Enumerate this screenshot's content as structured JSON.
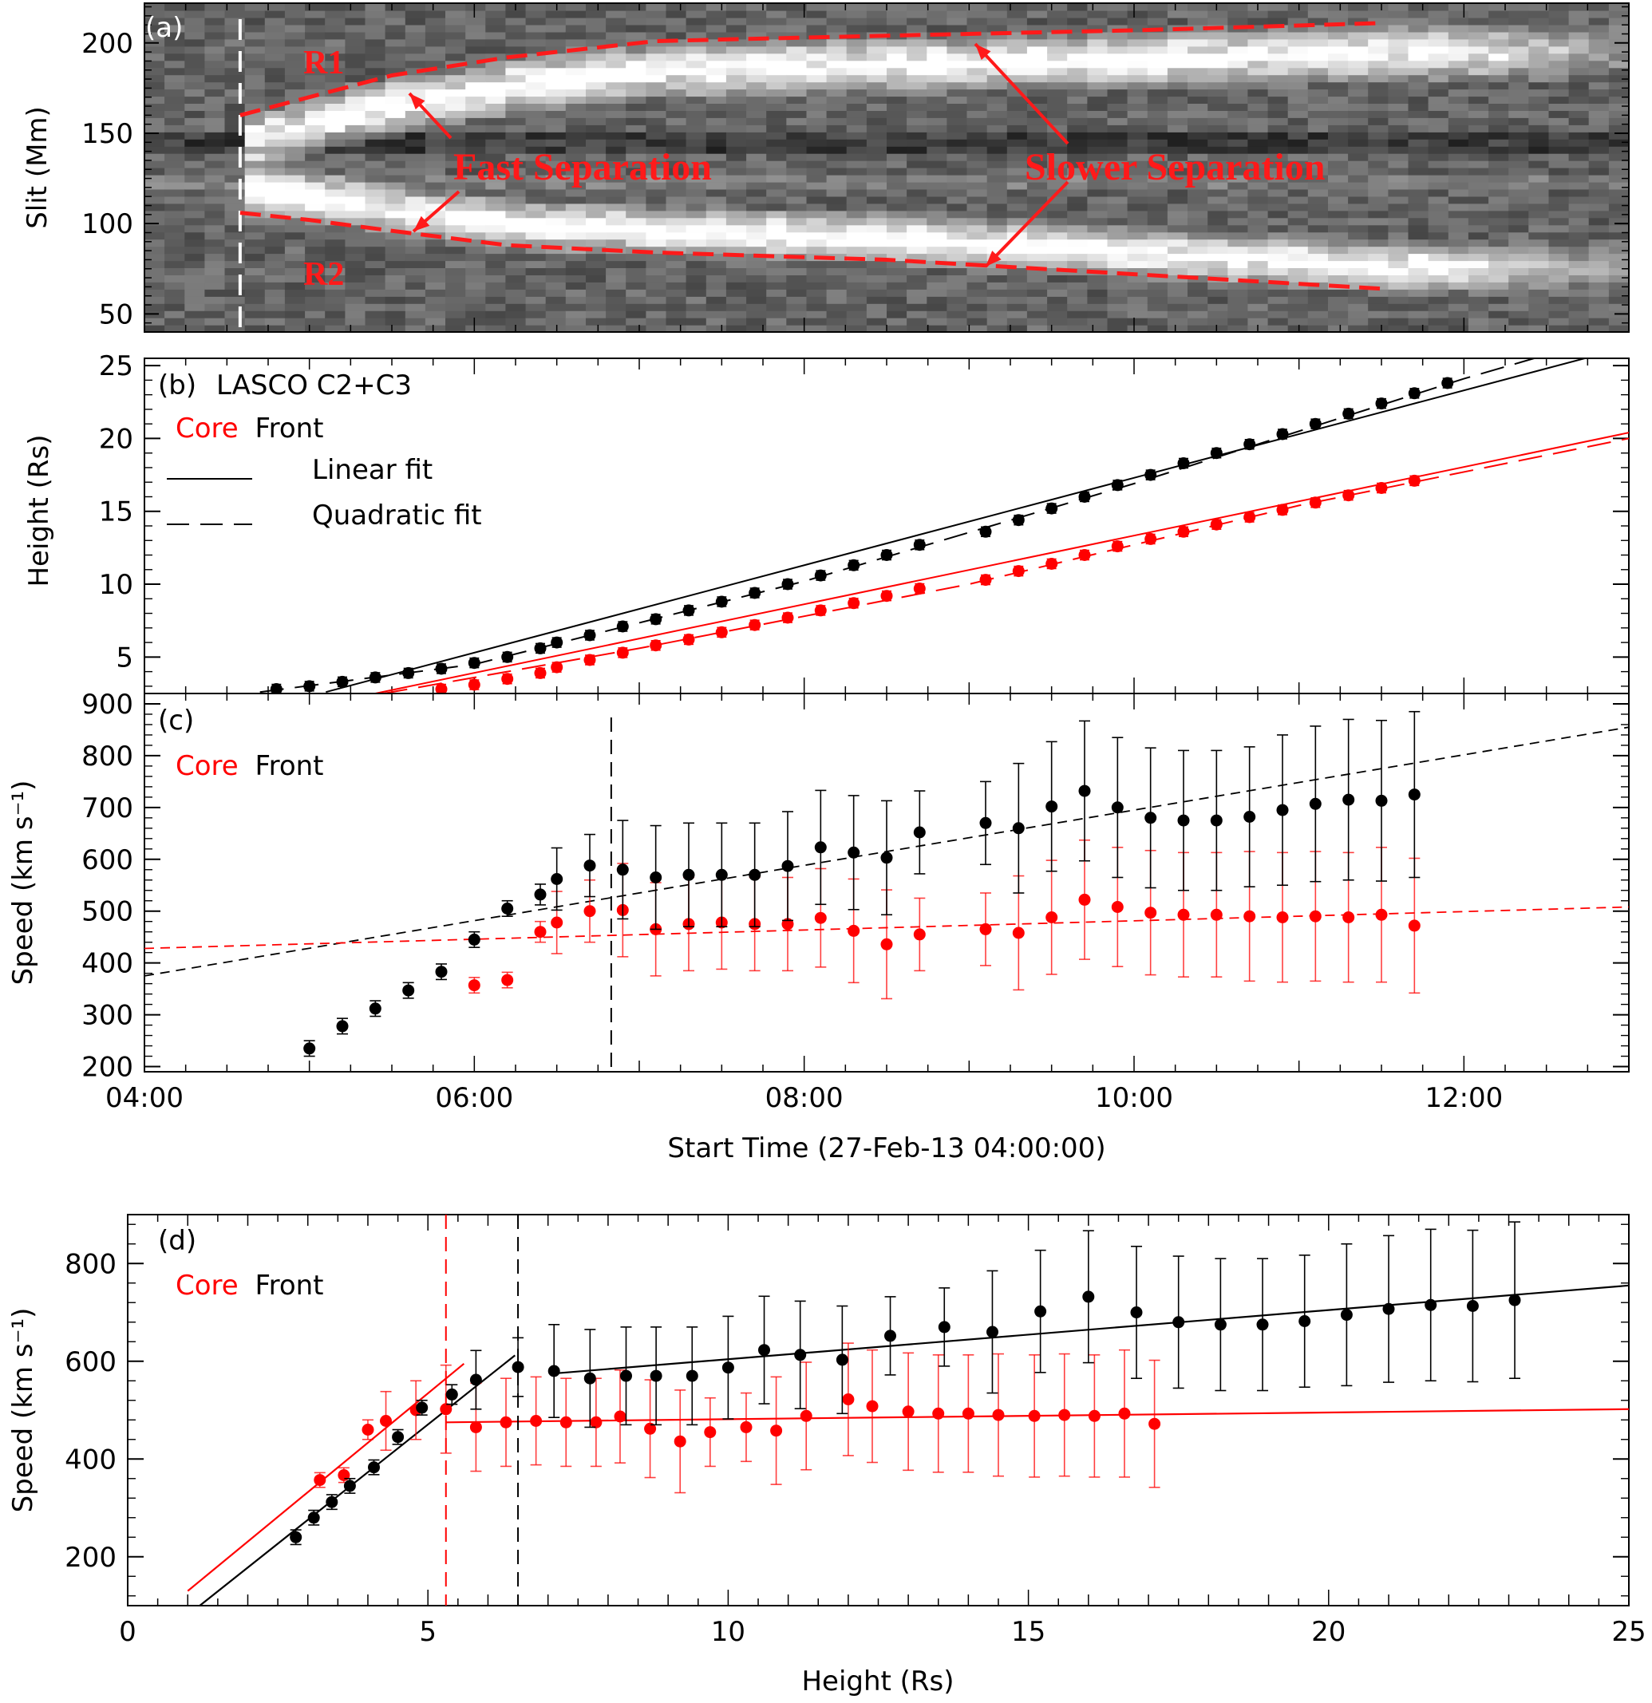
{
  "colors": {
    "red": "#ff0000",
    "black": "#000000",
    "annotation_red": "#ff1a1a"
  },
  "chart_data": [
    {
      "id": "a",
      "type": "heatmap",
      "panel_label": "(a)",
      "ylabel": "Slit (Mm)",
      "ylim": [
        40,
        222
      ],
      "yticks": [
        50,
        100,
        150,
        200
      ],
      "xlim_hours": [
        4.0,
        13.0
      ],
      "start_line_hours": 4.58,
      "ribbons": [
        {
          "name": "R1",
          "points": [
            [
              4.58,
              160
            ],
            [
              5.0,
              170
            ],
            [
              5.5,
              182
            ],
            [
              6.2,
              192
            ],
            [
              7.1,
              201
            ],
            [
              8.5,
              204
            ],
            [
              10.0,
              207
            ],
            [
              11.5,
              211
            ]
          ]
        },
        {
          "name": "R2",
          "points": [
            [
              4.58,
              106
            ],
            [
              5.0,
              102
            ],
            [
              5.5,
              96
            ],
            [
              6.2,
              88
            ],
            [
              7.1,
              84
            ],
            [
              8.5,
              80
            ],
            [
              10.0,
              72
            ],
            [
              11.5,
              64
            ]
          ]
        }
      ],
      "ribbon_labels": [
        "R1",
        "R2"
      ],
      "annotations": [
        "Fast Separation",
        "Slower Separation"
      ]
    },
    {
      "id": "b",
      "type": "scatter",
      "panel_label": "(b)",
      "legend_title": "LASCO C2+C3",
      "legend_core": "Core",
      "legend_front": "Front",
      "legend_linear": "Linear fit",
      "legend_quadratic": "Quadratic fit",
      "ylabel": "Height (Rs)",
      "ylim": [
        2.5,
        25.5
      ],
      "yticks": [
        5,
        10,
        15,
        20,
        25
      ],
      "xlim_hours": [
        4.0,
        13.0
      ],
      "series": [
        {
          "name": "Front",
          "color": "#000000",
          "x": [
            4.8,
            5.0,
            5.2,
            5.4,
            5.6,
            5.8,
            6.0,
            6.2,
            6.4,
            6.5,
            6.7,
            6.9,
            7.1,
            7.3,
            7.5,
            7.7,
            7.9,
            8.1,
            8.3,
            8.5,
            8.7,
            9.1,
            9.3,
            9.5,
            9.7,
            9.9,
            10.1,
            10.3,
            10.5,
            10.7,
            10.9,
            11.1,
            11.3,
            11.5,
            11.7,
            11.9
          ],
          "y": [
            2.8,
            3.0,
            3.3,
            3.6,
            3.9,
            4.2,
            4.6,
            5.0,
            5.6,
            6.0,
            6.5,
            7.1,
            7.6,
            8.2,
            8.8,
            9.4,
            10.0,
            10.6,
            11.3,
            12.0,
            12.7,
            13.6,
            14.4,
            15.2,
            16.0,
            16.8,
            17.5,
            18.3,
            19.0,
            19.6,
            20.3,
            21.0,
            21.7,
            22.4,
            23.1,
            23.8
          ]
        },
        {
          "name": "Core",
          "color": "#ff0000",
          "x": [
            5.8,
            6.0,
            6.2,
            6.4,
            6.5,
            6.7,
            6.9,
            7.1,
            7.3,
            7.5,
            7.7,
            7.9,
            8.1,
            8.3,
            8.5,
            8.7,
            9.1,
            9.3,
            9.5,
            9.7,
            9.9,
            10.1,
            10.3,
            10.5,
            10.7,
            10.9,
            11.1,
            11.3,
            11.5,
            11.7
          ],
          "y": [
            2.8,
            3.1,
            3.5,
            3.9,
            4.3,
            4.8,
            5.3,
            5.8,
            6.2,
            6.7,
            7.2,
            7.7,
            8.2,
            8.7,
            9.2,
            9.7,
            10.3,
            10.9,
            11.4,
            12.0,
            12.6,
            13.1,
            13.6,
            14.1,
            14.6,
            15.1,
            15.6,
            16.1,
            16.6,
            17.1
          ]
        }
      ],
      "fits": [
        {
          "kind": "linear",
          "color": "#000000",
          "from": [
            5.1,
            2.6
          ],
          "to": [
            13.0,
            26.3
          ]
        },
        {
          "kind": "quadratic",
          "color": "#000000",
          "points": [
            [
              4.7,
              2.6
            ],
            [
              6.0,
              4.5
            ],
            [
              8.0,
              10.2
            ],
            [
              10.0,
              16.9
            ],
            [
              12.0,
              24.1
            ],
            [
              12.7,
              26.4
            ]
          ]
        },
        {
          "kind": "linear",
          "color": "#ff0000",
          "from": [
            5.4,
            2.5
          ],
          "to": [
            13.0,
            20.4
          ]
        },
        {
          "kind": "quadratic",
          "color": "#ff0000",
          "points": [
            [
              5.45,
              2.5
            ],
            [
              7.0,
              5.6
            ],
            [
              9.0,
              10.0
            ],
            [
              11.0,
              15.4
            ],
            [
              13.0,
              20.0
            ]
          ]
        }
      ]
    },
    {
      "id": "c",
      "type": "scatter",
      "panel_label": "(c)",
      "legend_core": "Core",
      "legend_front": "Front",
      "ylabel": "Speed (km s⁻¹)",
      "ylim": [
        190,
        920
      ],
      "yticks": [
        200,
        300,
        400,
        500,
        600,
        700,
        800,
        900
      ],
      "xlim_hours": [
        4.0,
        13.0
      ],
      "xtick_labels": [
        "04:00",
        "06:00",
        "08:00",
        "10:00",
        "12:00"
      ],
      "xtick_hours": [
        4,
        6,
        8,
        10,
        12
      ],
      "xlabel": "Start Time (27-Feb-13 04:00:00)",
      "vline_hours": 6.83,
      "series": [
        {
          "name": "Front",
          "color": "#000000",
          "x": [
            5.0,
            5.2,
            5.4,
            5.6,
            5.8,
            6.0,
            6.2,
            6.4,
            6.5,
            6.7,
            6.9,
            7.1,
            7.3,
            7.5,
            7.7,
            7.9,
            8.1,
            8.3,
            8.5,
            8.7,
            9.1,
            9.3,
            9.5,
            9.7,
            9.9,
            10.1,
            10.3,
            10.5,
            10.7,
            10.9,
            11.1,
            11.3,
            11.5,
            11.7
          ],
          "y": [
            235,
            278,
            312,
            347,
            383,
            445,
            505,
            532,
            562,
            588,
            580,
            565,
            570,
            570,
            570,
            587,
            623,
            613,
            603,
            652,
            670,
            660,
            702,
            732,
            700,
            680,
            675,
            675,
            682,
            695,
            707,
            715,
            713,
            725
          ],
          "err": [
            15,
            15,
            15,
            15,
            15,
            15,
            15,
            20,
            60,
            60,
            95,
            100,
            100,
            100,
            100,
            105,
            110,
            110,
            110,
            80,
            80,
            125,
            125,
            135,
            135,
            135,
            135,
            135,
            135,
            145,
            150,
            155,
            155,
            160
          ]
        },
        {
          "name": "Core",
          "color": "#ff0000",
          "x": [
            6.0,
            6.2,
            6.4,
            6.5,
            6.7,
            6.9,
            7.1,
            7.3,
            7.5,
            7.7,
            7.9,
            8.1,
            8.3,
            8.5,
            8.7,
            9.1,
            9.3,
            9.5,
            9.7,
            9.9,
            10.1,
            10.3,
            10.5,
            10.7,
            10.9,
            11.1,
            11.3,
            11.5,
            11.7
          ],
          "y": [
            357,
            367,
            460,
            478,
            500,
            502,
            465,
            475,
            478,
            475,
            475,
            487,
            462,
            436,
            455,
            465,
            458,
            488,
            522,
            508,
            497,
            493,
            493,
            490,
            488,
            490,
            488,
            493,
            472
          ],
          "err": [
            15,
            15,
            20,
            60,
            60,
            90,
            90,
            90,
            90,
            90,
            90,
            95,
            100,
            105,
            70,
            70,
            110,
            110,
            115,
            115,
            120,
            120,
            120,
            125,
            125,
            125,
            125,
            130,
            130
          ]
        }
      ],
      "fits": [
        {
          "color": "#000000",
          "from": [
            4.0,
            375
          ],
          "to": [
            13.0,
            855
          ]
        },
        {
          "color": "#ff0000",
          "from": [
            4.0,
            428
          ],
          "to": [
            13.0,
            508
          ]
        }
      ]
    },
    {
      "id": "d",
      "type": "scatter",
      "panel_label": "(d)",
      "legend_core": "Core",
      "legend_front": "Front",
      "xlabel": "Height (Rs)",
      "ylabel": "Speed (km s⁻¹)",
      "xlim": [
        0,
        25
      ],
      "xticks": [
        0,
        5,
        10,
        15,
        20,
        25
      ],
      "ylim": [
        100,
        900
      ],
      "yticks": [
        200,
        400,
        600,
        800
      ],
      "vlines": [
        {
          "x": 5.3,
          "color": "#ff0000"
        },
        {
          "x": 6.5,
          "color": "#000000"
        }
      ],
      "series": [
        {
          "name": "Front",
          "color": "#000000",
          "x": [
            2.8,
            3.1,
            3.4,
            3.7,
            4.1,
            4.5,
            4.9,
            5.4,
            5.8,
            6.5,
            7.1,
            7.7,
            8.3,
            8.8,
            9.4,
            10.0,
            10.6,
            11.2,
            11.9,
            12.7,
            13.6,
            14.4,
            15.2,
            16.0,
            16.8,
            17.5,
            18.2,
            18.9,
            19.6,
            20.3,
            21.0,
            21.7,
            22.4,
            23.1
          ],
          "y": [
            240,
            280,
            312,
            345,
            383,
            445,
            505,
            532,
            562,
            588,
            580,
            565,
            570,
            570,
            570,
            587,
            623,
            613,
            603,
            652,
            670,
            660,
            702,
            732,
            700,
            680,
            675,
            675,
            682,
            695,
            707,
            715,
            713,
            725
          ],
          "err": [
            15,
            15,
            15,
            15,
            15,
            15,
            15,
            20,
            60,
            60,
            95,
            100,
            100,
            100,
            100,
            105,
            110,
            110,
            110,
            80,
            80,
            125,
            125,
            135,
            135,
            135,
            135,
            135,
            135,
            145,
            150,
            155,
            155,
            160
          ]
        },
        {
          "name": "Core",
          "color": "#ff0000",
          "x": [
            3.2,
            3.6,
            4.0,
            4.3,
            4.8,
            5.3,
            5.8,
            6.3,
            6.8,
            7.3,
            7.8,
            8.2,
            8.7,
            9.2,
            9.7,
            10.3,
            10.8,
            11.3,
            12.0,
            12.4,
            13.0,
            13.5,
            14.0,
            14.5,
            15.1,
            15.6,
            16.1,
            16.6,
            17.1
          ],
          "y": [
            357,
            367,
            460,
            478,
            500,
            502,
            465,
            475,
            478,
            475,
            475,
            487,
            462,
            436,
            455,
            465,
            458,
            488,
            522,
            508,
            497,
            493,
            493,
            490,
            488,
            490,
            488,
            493,
            472
          ],
          "err": [
            15,
            15,
            20,
            60,
            60,
            90,
            90,
            90,
            90,
            90,
            90,
            95,
            100,
            105,
            70,
            70,
            110,
            110,
            115,
            115,
            120,
            120,
            120,
            125,
            125,
            125,
            125,
            130,
            130
          ]
        }
      ],
      "fits": [
        {
          "color": "#000000",
          "from": [
            1.2,
            100
          ],
          "to": [
            6.45,
            612
          ]
        },
        {
          "color": "#ff0000",
          "from": [
            1.0,
            130
          ],
          "to": [
            5.6,
            595
          ]
        },
        {
          "color": "#000000",
          "from": [
            7.1,
            575
          ],
          "to": [
            25.0,
            755
          ]
        },
        {
          "color": "#ff0000",
          "from": [
            5.3,
            475
          ],
          "to": [
            25.0,
            502
          ]
        }
      ]
    }
  ]
}
